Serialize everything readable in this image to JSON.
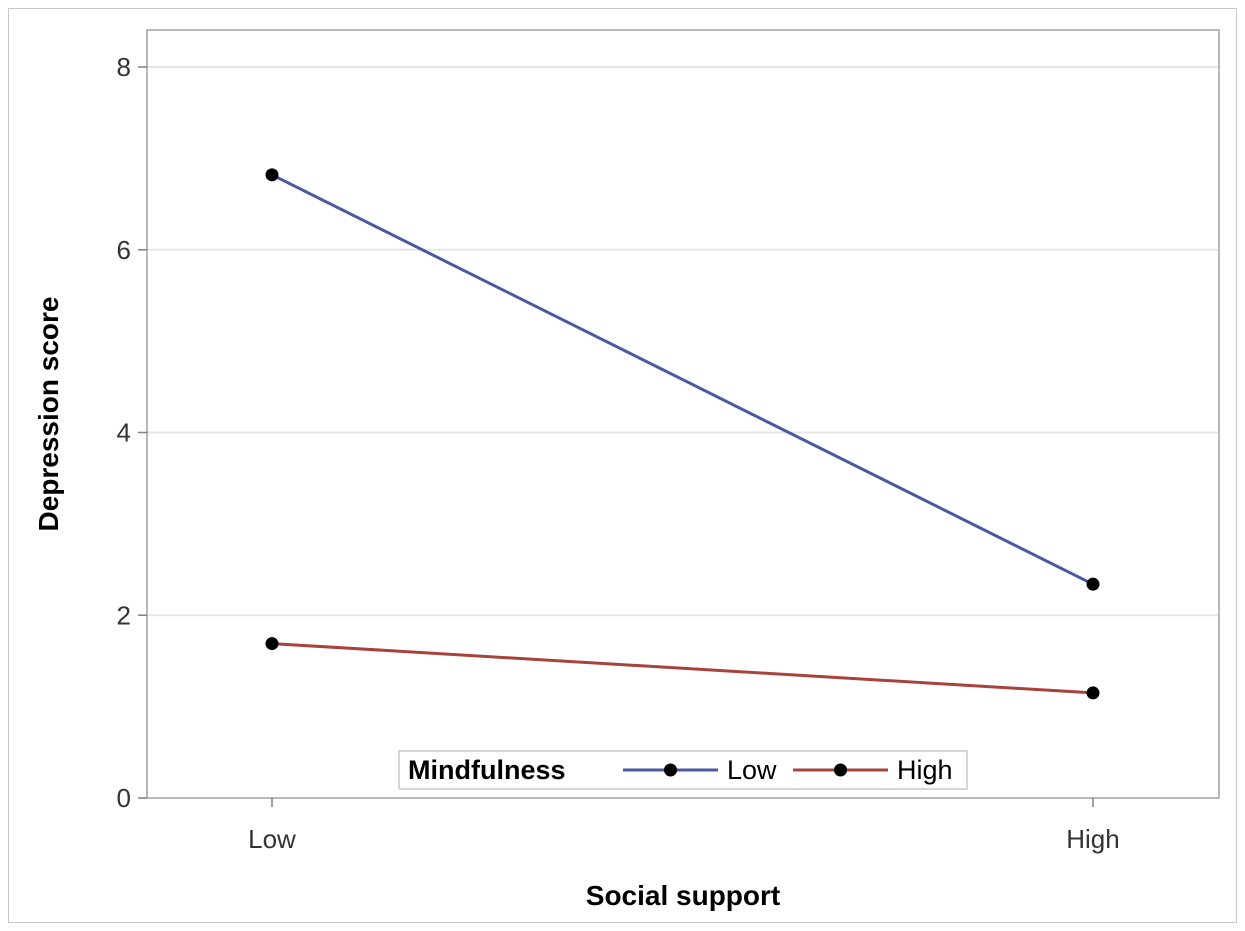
{
  "chart_data": {
    "type": "line",
    "xlabel": "Social support",
    "ylabel": "Depression score",
    "categories": [
      "Low",
      "High"
    ],
    "ylim": [
      0,
      8
    ],
    "yticks": [
      0,
      2,
      4,
      6,
      8
    ],
    "grid": true,
    "legend_position": "bottom-center",
    "legend_title": "Mindfulness",
    "series": [
      {
        "name": "Low",
        "values": [
          6.82,
          2.34
        ],
        "color": "#4a5aa0"
      },
      {
        "name": "High",
        "values": [
          1.69,
          1.15
        ],
        "color": "#a8423c"
      }
    ]
  }
}
